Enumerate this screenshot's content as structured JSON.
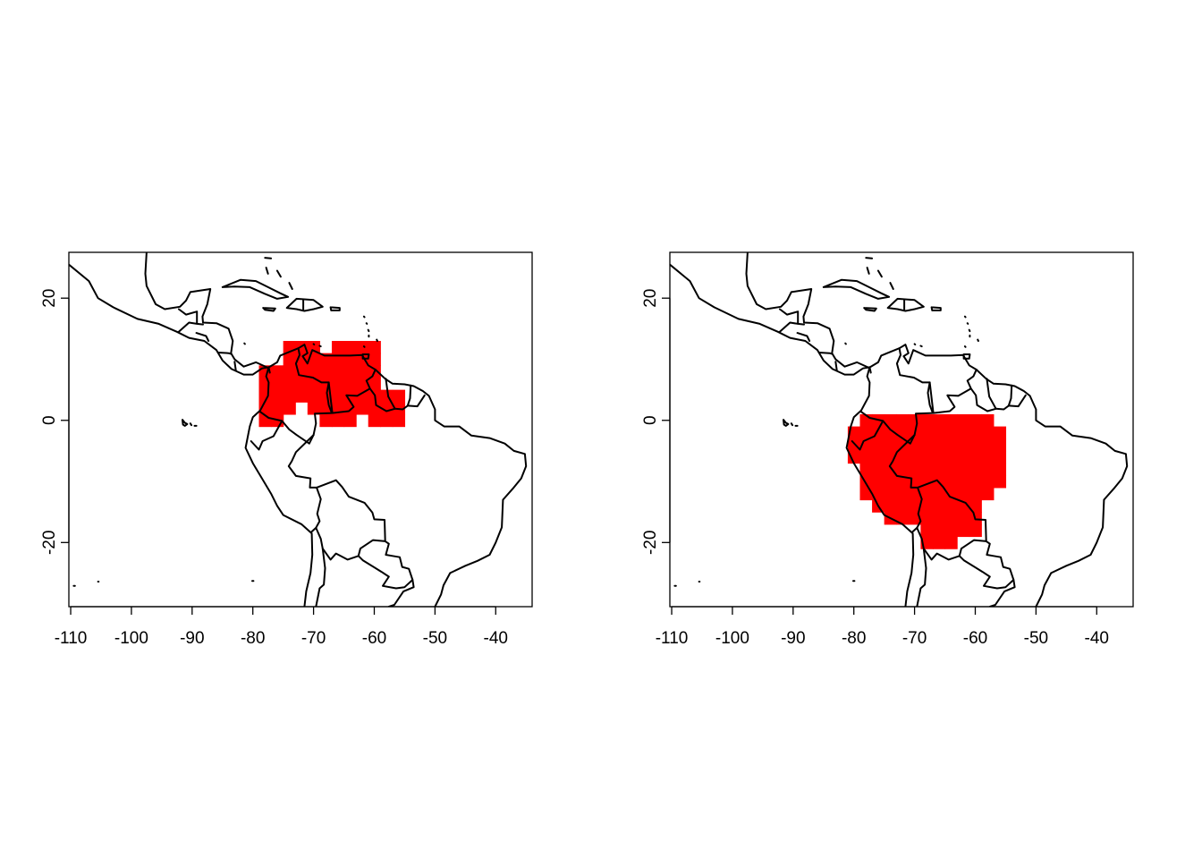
{
  "maps": [
    {
      "name": "left-map",
      "x_ticks": [
        "-110",
        "-100",
        "-90",
        "-80",
        "-70",
        "-60",
        "-50",
        "-40"
      ],
      "y_ticks": [
        "-20",
        "0",
        "20"
      ],
      "x_range": [
        -110.3,
        -34
      ],
      "y_range": [
        -30.5,
        27.5
      ],
      "fill_color": "#ff0000",
      "range_cells_lon_lat": [
        [
          -78,
          8
        ],
        [
          -76,
          8
        ],
        [
          -74,
          8
        ],
        [
          -72,
          8
        ],
        [
          -70,
          8
        ],
        [
          -68,
          8
        ],
        [
          -66,
          8
        ],
        [
          -64,
          8
        ],
        [
          -62,
          8
        ],
        [
          -60,
          8
        ],
        [
          -74,
          10
        ],
        [
          -72,
          10
        ],
        [
          -70,
          10
        ],
        [
          -68,
          10
        ],
        [
          -66,
          10
        ],
        [
          -64,
          10
        ],
        [
          -62,
          10
        ],
        [
          -60,
          10
        ],
        [
          -74,
          12
        ],
        [
          -72,
          12
        ],
        [
          -70,
          12
        ],
        [
          -66,
          12
        ],
        [
          -64,
          12
        ],
        [
          -62,
          12
        ],
        [
          -60,
          12
        ],
        [
          -78,
          6
        ],
        [
          -76,
          6
        ],
        [
          -74,
          6
        ],
        [
          -72,
          6
        ],
        [
          -70,
          6
        ],
        [
          -68,
          6
        ],
        [
          -66,
          6
        ],
        [
          -64,
          6
        ],
        [
          -62,
          6
        ],
        [
          -60,
          6
        ],
        [
          -78,
          4
        ],
        [
          -76,
          4
        ],
        [
          -74,
          4
        ],
        [
          -72,
          4
        ],
        [
          -70,
          4
        ],
        [
          -68,
          4
        ],
        [
          -66,
          4
        ],
        [
          -64,
          4
        ],
        [
          -62,
          4
        ],
        [
          -60,
          4
        ],
        [
          -58,
          4
        ],
        [
          -56,
          4
        ],
        [
          -78,
          2
        ],
        [
          -76,
          2
        ],
        [
          -74,
          2
        ],
        [
          -70,
          2
        ],
        [
          -68,
          2
        ],
        [
          -66,
          2
        ],
        [
          -64,
          2
        ],
        [
          -62,
          2
        ],
        [
          -60,
          2
        ],
        [
          -58,
          2
        ],
        [
          -56,
          2
        ],
        [
          -78,
          0
        ],
        [
          -76,
          0
        ],
        [
          -68,
          0
        ],
        [
          -66,
          0
        ],
        [
          -64,
          0
        ],
        [
          -60,
          0
        ],
        [
          -58,
          0
        ],
        [
          -56,
          0
        ]
      ]
    },
    {
      "name": "right-map",
      "x_ticks": [
        "-110",
        "-100",
        "-90",
        "-80",
        "-70",
        "-60",
        "-50",
        "-40"
      ],
      "y_ticks": [
        "-20",
        "0",
        "20"
      ],
      "x_range": [
        -110.3,
        -34
      ],
      "y_range": [
        -30.5,
        27.5
      ],
      "fill_color": "#ff0000",
      "range_cells_lon_lat": [
        [
          -78,
          0
        ],
        [
          -76,
          0
        ],
        [
          -74,
          0
        ],
        [
          -72,
          0
        ],
        [
          -70,
          0
        ],
        [
          -68,
          0
        ],
        [
          -66,
          0
        ],
        [
          -64,
          0
        ],
        [
          -62,
          0
        ],
        [
          -60,
          0
        ],
        [
          -58,
          0
        ],
        [
          -80,
          -2
        ],
        [
          -78,
          -2
        ],
        [
          -76,
          -2
        ],
        [
          -74,
          -2
        ],
        [
          -72,
          -2
        ],
        [
          -70,
          -2
        ],
        [
          -68,
          -2
        ],
        [
          -66,
          -2
        ],
        [
          -64,
          -2
        ],
        [
          -62,
          -2
        ],
        [
          -60,
          -2
        ],
        [
          -58,
          -2
        ],
        [
          -56,
          -2
        ],
        [
          -80,
          -4
        ],
        [
          -78,
          -4
        ],
        [
          -76,
          -4
        ],
        [
          -74,
          -4
        ],
        [
          -72,
          -4
        ],
        [
          -70,
          -4
        ],
        [
          -68,
          -4
        ],
        [
          -66,
          -4
        ],
        [
          -64,
          -4
        ],
        [
          -62,
          -4
        ],
        [
          -60,
          -4
        ],
        [
          -58,
          -4
        ],
        [
          -56,
          -4
        ],
        [
          -80,
          -6
        ],
        [
          -78,
          -6
        ],
        [
          -76,
          -6
        ],
        [
          -74,
          -6
        ],
        [
          -72,
          -6
        ],
        [
          -70,
          -6
        ],
        [
          -68,
          -6
        ],
        [
          -66,
          -6
        ],
        [
          -64,
          -6
        ],
        [
          -62,
          -6
        ],
        [
          -60,
          -6
        ],
        [
          -58,
          -6
        ],
        [
          -56,
          -6
        ],
        [
          -78,
          -8
        ],
        [
          -76,
          -8
        ],
        [
          -74,
          -8
        ],
        [
          -72,
          -8
        ],
        [
          -70,
          -8
        ],
        [
          -68,
          -8
        ],
        [
          -66,
          -8
        ],
        [
          -64,
          -8
        ],
        [
          -62,
          -8
        ],
        [
          -60,
          -8
        ],
        [
          -58,
          -8
        ],
        [
          -56,
          -8
        ],
        [
          -78,
          -10
        ],
        [
          -76,
          -10
        ],
        [
          -74,
          -10
        ],
        [
          -72,
          -10
        ],
        [
          -70,
          -10
        ],
        [
          -68,
          -10
        ],
        [
          -66,
          -10
        ],
        [
          -64,
          -10
        ],
        [
          -62,
          -10
        ],
        [
          -60,
          -10
        ],
        [
          -58,
          -10
        ],
        [
          -56,
          -10
        ],
        [
          -78,
          -12
        ],
        [
          -76,
          -12
        ],
        [
          -74,
          -12
        ],
        [
          -72,
          -12
        ],
        [
          -70,
          -12
        ],
        [
          -68,
          -12
        ],
        [
          -66,
          -12
        ],
        [
          -64,
          -12
        ],
        [
          -62,
          -12
        ],
        [
          -60,
          -12
        ],
        [
          -58,
          -12
        ],
        [
          -76,
          -14
        ],
        [
          -74,
          -14
        ],
        [
          -72,
          -14
        ],
        [
          -70,
          -14
        ],
        [
          -68,
          -14
        ],
        [
          -66,
          -14
        ],
        [
          -64,
          -14
        ],
        [
          -62,
          -14
        ],
        [
          -60,
          -14
        ],
        [
          -74,
          -16
        ],
        [
          -72,
          -16
        ],
        [
          -70,
          -16
        ],
        [
          -68,
          -16
        ],
        [
          -66,
          -16
        ],
        [
          -64,
          -16
        ],
        [
          -62,
          -16
        ],
        [
          -60,
          -16
        ],
        [
          -68,
          -18
        ],
        [
          -66,
          -18
        ],
        [
          -64,
          -18
        ],
        [
          -62,
          -18
        ],
        [
          -60,
          -18
        ],
        [
          -68,
          -20
        ],
        [
          -66,
          -20
        ],
        [
          -64,
          -20
        ]
      ]
    }
  ]
}
